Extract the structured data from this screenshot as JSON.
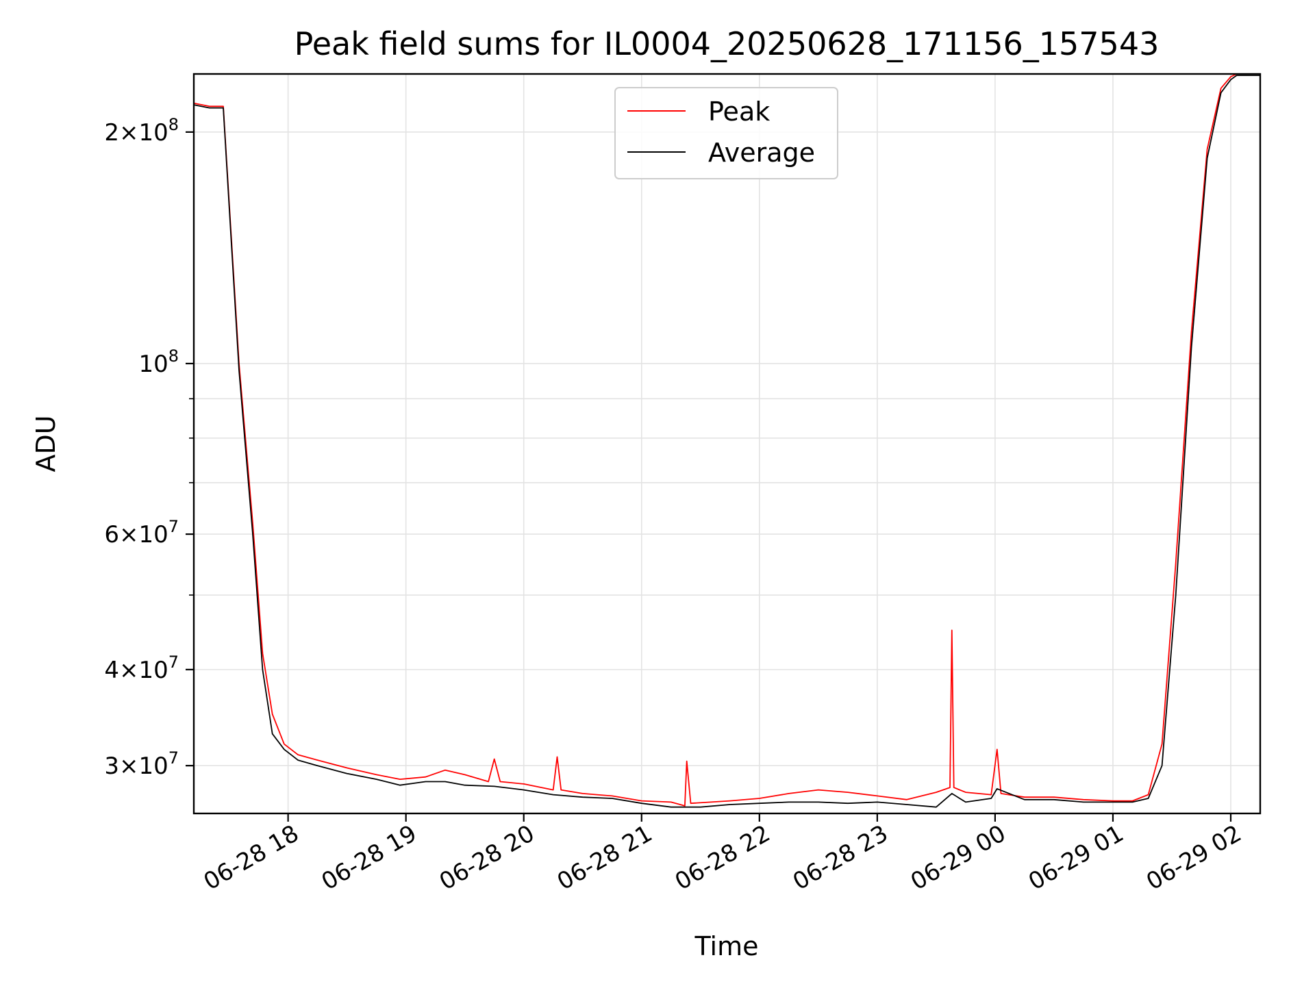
{
  "chart_data": {
    "type": "line",
    "title": "Peak field sums for IL0004_20250628_171156_157543",
    "xlabel": "Time",
    "ylabel": "ADU",
    "yscale": "log",
    "grid": true,
    "legend_position": "top-center",
    "xlim": [
      "2025-06-28 17:12",
      "2025-06-29 02:15"
    ],
    "ylim": [
      26000000,
      238000000
    ],
    "x_ticks": [
      {
        "value": "2025-06-28 18:00",
        "label": "06-28 18"
      },
      {
        "value": "2025-06-28 19:00",
        "label": "06-28 19"
      },
      {
        "value": "2025-06-28 20:00",
        "label": "06-28 20"
      },
      {
        "value": "2025-06-28 21:00",
        "label": "06-28 21"
      },
      {
        "value": "2025-06-28 22:00",
        "label": "06-28 22"
      },
      {
        "value": "2025-06-28 23:00",
        "label": "06-28 23"
      },
      {
        "value": "2025-06-29 00:00",
        "label": "06-29 00"
      },
      {
        "value": "2025-06-29 01:00",
        "label": "06-29 01"
      },
      {
        "value": "2025-06-29 02:00",
        "label": "06-29 02"
      }
    ],
    "y_ticks": [
      {
        "value": 30000000,
        "base": "3×10",
        "exp": "7"
      },
      {
        "value": 40000000,
        "base": "4×10",
        "exp": "7"
      },
      {
        "value": 60000000,
        "base": "6×10",
        "exp": "7"
      },
      {
        "value": 100000000,
        "base": "10",
        "exp": "8"
      },
      {
        "value": 200000000,
        "base": "2×10",
        "exp": "8"
      }
    ],
    "series": [
      {
        "name": "Peak",
        "color": "#ff0000",
        "x": [
          "2025-06-28 17:12",
          "2025-06-28 17:20",
          "2025-06-28 17:27",
          "2025-06-28 17:35",
          "2025-06-28 17:42",
          "2025-06-28 17:47",
          "2025-06-28 17:52",
          "2025-06-28 17:58",
          "2025-06-28 18:05",
          "2025-06-28 18:15",
          "2025-06-28 18:30",
          "2025-06-28 18:45",
          "2025-06-28 18:57",
          "2025-06-28 19:10",
          "2025-06-28 19:20",
          "2025-06-28 19:30",
          "2025-06-28 19:42",
          "2025-06-28 19:45",
          "2025-06-28 19:48",
          "2025-06-28 20:00",
          "2025-06-28 20:15",
          "2025-06-28 20:17",
          "2025-06-28 20:19",
          "2025-06-28 20:30",
          "2025-06-28 20:45",
          "2025-06-28 21:00",
          "2025-06-28 21:15",
          "2025-06-28 21:22",
          "2025-06-28 21:23",
          "2025-06-28 21:25",
          "2025-06-28 21:45",
          "2025-06-28 22:00",
          "2025-06-28 22:15",
          "2025-06-28 22:30",
          "2025-06-28 22:45",
          "2025-06-28 23:00",
          "2025-06-28 23:15",
          "2025-06-28 23:30",
          "2025-06-28 23:37",
          "2025-06-28 23:38",
          "2025-06-28 23:39",
          "2025-06-28 23:45",
          "2025-06-28 23:58",
          "2025-06-29 00:01",
          "2025-06-29 00:03",
          "2025-06-29 00:15",
          "2025-06-29 00:30",
          "2025-06-29 00:45",
          "2025-06-29 01:00",
          "2025-06-29 01:10",
          "2025-06-29 01:18",
          "2025-06-29 01:25",
          "2025-06-29 01:32",
          "2025-06-29 01:40",
          "2025-06-29 01:48",
          "2025-06-29 01:55",
          "2025-06-29 02:00",
          "2025-06-29 02:03",
          "2025-06-29 02:15"
        ],
        "y": [
          218000000,
          216000000,
          216000000,
          100000000,
          62000000,
          42000000,
          35000000,
          32000000,
          31000000,
          30500000,
          29800000,
          29200000,
          28800000,
          29000000,
          29600000,
          29200000,
          28600000,
          30600000,
          28600000,
          28400000,
          27900000,
          30800000,
          27900000,
          27600000,
          27400000,
          27000000,
          26900000,
          26600000,
          30400000,
          26800000,
          27000000,
          27200000,
          27600000,
          27900000,
          27700000,
          27400000,
          27100000,
          27700000,
          28100000,
          45000000,
          28100000,
          27700000,
          27500000,
          31500000,
          27600000,
          27300000,
          27300000,
          27100000,
          27000000,
          27000000,
          27500000,
          32000000,
          55000000,
          110000000,
          190000000,
          228000000,
          236000000,
          238000000,
          238000000
        ]
      },
      {
        "name": "Average",
        "color": "#000000",
        "x": [
          "2025-06-28 17:12",
          "2025-06-28 17:20",
          "2025-06-28 17:27",
          "2025-06-28 17:35",
          "2025-06-28 17:42",
          "2025-06-28 17:47",
          "2025-06-28 17:52",
          "2025-06-28 17:58",
          "2025-06-28 18:05",
          "2025-06-28 18:15",
          "2025-06-28 18:30",
          "2025-06-28 18:45",
          "2025-06-28 18:57",
          "2025-06-28 19:10",
          "2025-06-28 19:20",
          "2025-06-28 19:30",
          "2025-06-28 19:45",
          "2025-06-28 20:00",
          "2025-06-28 20:15",
          "2025-06-28 20:30",
          "2025-06-28 20:45",
          "2025-06-28 21:00",
          "2025-06-28 21:15",
          "2025-06-28 21:30",
          "2025-06-28 21:45",
          "2025-06-28 22:00",
          "2025-06-28 22:15",
          "2025-06-28 22:30",
          "2025-06-28 22:45",
          "2025-06-28 23:00",
          "2025-06-28 23:15",
          "2025-06-28 23:30",
          "2025-06-28 23:38",
          "2025-06-28 23:45",
          "2025-06-28 23:58",
          "2025-06-29 00:01",
          "2025-06-29 00:15",
          "2025-06-29 00:30",
          "2025-06-29 00:45",
          "2025-06-29 01:00",
          "2025-06-29 01:10",
          "2025-06-29 01:18",
          "2025-06-29 01:25",
          "2025-06-29 01:32",
          "2025-06-29 01:40",
          "2025-06-29 01:48",
          "2025-06-29 01:55",
          "2025-06-29 02:00",
          "2025-06-29 02:03",
          "2025-06-29 02:15"
        ],
        "y": [
          217000000,
          215000000,
          215000000,
          98000000,
          60000000,
          40000000,
          33000000,
          31500000,
          30500000,
          30000000,
          29300000,
          28800000,
          28300000,
          28600000,
          28600000,
          28300000,
          28200000,
          27900000,
          27500000,
          27300000,
          27200000,
          26800000,
          26500000,
          26500000,
          26700000,
          26800000,
          26900000,
          26900000,
          26800000,
          26900000,
          26700000,
          26500000,
          27600000,
          26900000,
          27200000,
          28000000,
          27100000,
          27100000,
          26900000,
          26900000,
          26900000,
          27200000,
          30000000,
          50000000,
          105000000,
          185000000,
          225000000,
          234000000,
          237000000,
          237000000
        ]
      }
    ]
  }
}
